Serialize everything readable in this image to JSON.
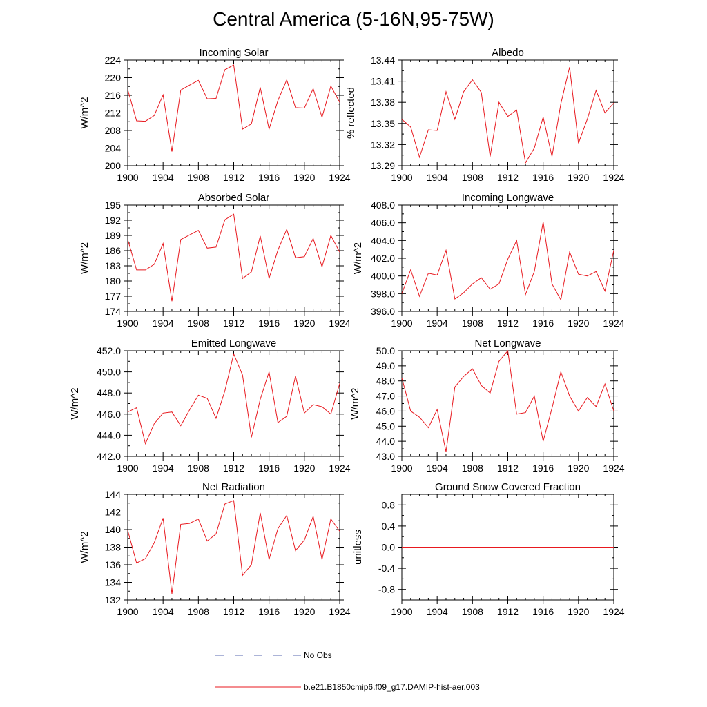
{
  "figure": {
    "title": "Central America (5-16N,95-75W)",
    "legend": [
      {
        "label": "No Obs",
        "color": "#5a6ab0",
        "style": "dashed"
      },
      {
        "label": "b.e21.B1850cmip6.f09_g17.DAMIP-hist-aer.003",
        "color": "#e8191f",
        "style": "solid"
      }
    ]
  },
  "chart_data": [
    {
      "type": "line",
      "title": "Incoming Solar",
      "ylabel": "W/m^2",
      "xlim": [
        1900,
        1924
      ],
      "ylim": [
        200,
        224
      ],
      "xticks": [
        1900,
        1904,
        1908,
        1912,
        1916,
        1920,
        1924
      ],
      "yticks": [
        "200",
        "204",
        "208",
        "212",
        "216",
        "220",
        "224"
      ],
      "line_color": "#e8191f",
      "x": [
        1900,
        1901,
        1902,
        1903,
        1904,
        1905,
        1906,
        1907,
        1908,
        1909,
        1910,
        1911,
        1912,
        1913,
        1914,
        1915,
        1916,
        1917,
        1918,
        1919,
        1920,
        1921,
        1922,
        1923,
        1924
      ],
      "y": [
        217.3,
        210.2,
        210.1,
        211.4,
        216.1,
        203.2,
        217.2,
        218.3,
        219.4,
        215.2,
        215.3,
        221.8,
        222.9,
        208.3,
        209.5,
        217.8,
        208.3,
        214.8,
        219.5,
        213.2,
        213.1,
        217.5,
        211.0,
        218.1,
        214.4
      ]
    },
    {
      "type": "line",
      "title": "Albedo",
      "ylabel": "% reflected",
      "xlim": [
        1900,
        1924
      ],
      "ylim": [
        13.29,
        13.44
      ],
      "xticks": [
        1900,
        1904,
        1908,
        1912,
        1916,
        1920,
        1924
      ],
      "yticks": [
        "13.29",
        "13.32",
        "13.35",
        "13.38",
        "13.41",
        "13.44"
      ],
      "line_color": "#e8191f",
      "x": [
        1900,
        1901,
        1902,
        1903,
        1904,
        1905,
        1906,
        1907,
        1908,
        1909,
        1910,
        1911,
        1912,
        1913,
        1914,
        1915,
        1916,
        1917,
        1918,
        1919,
        1920,
        1921,
        1922,
        1923,
        1924
      ],
      "y": [
        13.356,
        13.345,
        13.302,
        13.341,
        13.34,
        13.395,
        13.356,
        13.395,
        13.412,
        13.394,
        13.303,
        13.38,
        13.36,
        13.369,
        13.294,
        13.315,
        13.359,
        13.303,
        13.378,
        13.43,
        13.322,
        13.356,
        13.397,
        13.365,
        13.379
      ]
    },
    {
      "type": "line",
      "title": "Absorbed Solar",
      "ylabel": "W/m^2",
      "xlim": [
        1900,
        1924
      ],
      "ylim": [
        174,
        195
      ],
      "xticks": [
        1900,
        1904,
        1908,
        1912,
        1916,
        1920,
        1924
      ],
      "yticks": [
        "174",
        "177",
        "180",
        "183",
        "186",
        "189",
        "192",
        "195"
      ],
      "line_color": "#e8191f",
      "x": [
        1900,
        1901,
        1902,
        1903,
        1904,
        1905,
        1906,
        1907,
        1908,
        1909,
        1910,
        1911,
        1912,
        1913,
        1914,
        1915,
        1916,
        1917,
        1918,
        1919,
        1920,
        1921,
        1922,
        1923,
        1924
      ],
      "y": [
        188.2,
        182.2,
        182.2,
        183.3,
        187.4,
        176.0,
        188.2,
        189.1,
        190.0,
        186.5,
        186.7,
        192.1,
        193.2,
        180.5,
        181.8,
        188.9,
        180.5,
        186.1,
        190.2,
        184.6,
        184.8,
        188.4,
        182.8,
        189.0,
        185.7
      ]
    },
    {
      "type": "line",
      "title": "Incoming Longwave",
      "ylabel": "W/m^2",
      "xlim": [
        1900,
        1924
      ],
      "ylim": [
        396,
        408
      ],
      "xticks": [
        1900,
        1904,
        1908,
        1912,
        1916,
        1920,
        1924
      ],
      "yticks": [
        "396.0",
        "398.0",
        "400.0",
        "402.0",
        "404.0",
        "406.0",
        "408.0"
      ],
      "line_color": "#e8191f",
      "x": [
        1900,
        1901,
        1902,
        1903,
        1904,
        1905,
        1906,
        1907,
        1908,
        1909,
        1910,
        1911,
        1912,
        1913,
        1914,
        1915,
        1916,
        1917,
        1918,
        1919,
        1920,
        1921,
        1922,
        1923,
        1924
      ],
      "y": [
        398.0,
        400.7,
        397.7,
        400.3,
        400.1,
        402.9,
        397.4,
        398.1,
        399.1,
        399.8,
        398.5,
        399.1,
        401.9,
        404.0,
        397.9,
        400.5,
        406.1,
        399.1,
        397.3,
        402.7,
        400.2,
        400.0,
        400.5,
        398.3,
        402.9
      ]
    },
    {
      "type": "line",
      "title": "Emitted Longwave",
      "ylabel": "W/m^2",
      "xlim": [
        1900,
        1924
      ],
      "ylim": [
        442,
        452
      ],
      "xticks": [
        1900,
        1904,
        1908,
        1912,
        1916,
        1920,
        1924
      ],
      "yticks": [
        "442.0",
        "444.0",
        "446.0",
        "448.0",
        "450.0",
        "452.0"
      ],
      "line_color": "#e8191f",
      "x": [
        1900,
        1901,
        1902,
        1903,
        1904,
        1905,
        1906,
        1907,
        1908,
        1909,
        1910,
        1911,
        1912,
        1913,
        1914,
        1915,
        1916,
        1917,
        1918,
        1919,
        1920,
        1921,
        1922,
        1923,
        1924
      ],
      "y": [
        446.2,
        446.6,
        443.2,
        445.1,
        446.1,
        446.2,
        444.9,
        446.4,
        447.8,
        447.5,
        445.6,
        448.2,
        451.7,
        449.7,
        443.8,
        447.4,
        450.0,
        445.2,
        445.8,
        449.6,
        446.1,
        446.9,
        446.7,
        446.0,
        448.9
      ]
    },
    {
      "type": "line",
      "title": "Net Longwave",
      "ylabel": "W/m^2",
      "xlim": [
        1900,
        1924
      ],
      "ylim": [
        43,
        50
      ],
      "xticks": [
        1900,
        1904,
        1908,
        1912,
        1916,
        1920,
        1924
      ],
      "yticks": [
        "43.0",
        "44.0",
        "45.0",
        "46.0",
        "47.0",
        "48.0",
        "49.0",
        "50.0"
      ],
      "line_color": "#e8191f",
      "x": [
        1900,
        1901,
        1902,
        1903,
        1904,
        1905,
        1906,
        1907,
        1908,
        1909,
        1910,
        1911,
        1912,
        1913,
        1914,
        1915,
        1916,
        1917,
        1918,
        1919,
        1920,
        1921,
        1922,
        1923,
        1924
      ],
      "y": [
        48.2,
        46.0,
        45.6,
        44.9,
        46.1,
        43.3,
        47.6,
        48.3,
        48.8,
        47.7,
        47.2,
        49.3,
        50.0,
        45.8,
        45.9,
        47.0,
        44.0,
        46.2,
        48.6,
        47.0,
        46.0,
        46.9,
        46.3,
        47.8,
        46.0
      ]
    },
    {
      "type": "line",
      "title": "Net Radiation",
      "ylabel": "W/m^2",
      "xlim": [
        1900,
        1924
      ],
      "ylim": [
        132,
        144
      ],
      "xticks": [
        1900,
        1904,
        1908,
        1912,
        1916,
        1920,
        1924
      ],
      "yticks": [
        "132",
        "134",
        "136",
        "138",
        "140",
        "142",
        "144"
      ],
      "line_color": "#e8191f",
      "x": [
        1900,
        1901,
        1902,
        1903,
        1904,
        1905,
        1906,
        1907,
        1908,
        1909,
        1910,
        1911,
        1912,
        1913,
        1914,
        1915,
        1916,
        1917,
        1918,
        1919,
        1920,
        1921,
        1922,
        1923,
        1924
      ],
      "y": [
        139.9,
        136.2,
        136.7,
        138.5,
        141.3,
        132.7,
        140.6,
        140.7,
        141.2,
        138.7,
        139.5,
        142.9,
        143.3,
        134.8,
        136.0,
        141.9,
        136.6,
        140.1,
        141.6,
        137.6,
        138.8,
        141.5,
        136.6,
        141.2,
        139.8
      ]
    },
    {
      "type": "line",
      "title": "Ground Snow Covered Fraction",
      "ylabel": "unitless",
      "xlim": [
        1900,
        1924
      ],
      "ylim": [
        -1.0,
        1.0
      ],
      "xticks": [
        1900,
        1904,
        1908,
        1912,
        1916,
        1920,
        1924
      ],
      "yticks": [
        "-0.8",
        "-0.4",
        "0.0",
        "0.4",
        "0.8"
      ],
      "line_color": "#e8191f",
      "x": [
        1900,
        1924
      ],
      "y": [
        0.0,
        0.0
      ]
    }
  ]
}
